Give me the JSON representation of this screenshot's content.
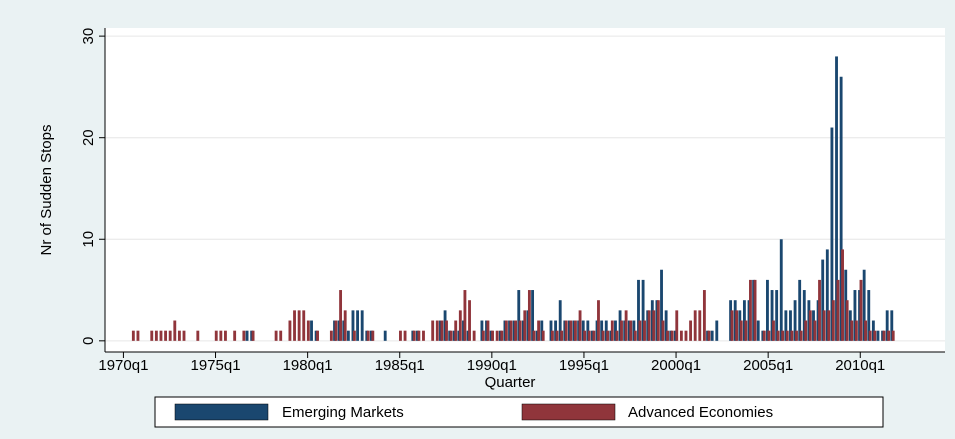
{
  "chart_data": {
    "type": "bar",
    "y_label": "Nr of Sudden Stops",
    "x_label": "Quarter",
    "x": [
      1970.5,
      1970.75,
      1971.5,
      1971.75,
      1972.0,
      1972.25,
      1972.5,
      1972.75,
      1973.0,
      1973.25,
      1974.0,
      1975.0,
      1975.25,
      1975.5,
      1976.0,
      1976.5,
      1976.75,
      1977.0,
      1978.25,
      1978.5,
      1979.0,
      1979.25,
      1979.5,
      1979.75,
      1980.0,
      1980.25,
      1980.5,
      1981.25,
      1981.5,
      1981.75,
      1982.0,
      1982.25,
      1982.5,
      1982.75,
      1983.0,
      1983.25,
      1983.5,
      1984.25,
      1985.0,
      1985.25,
      1985.75,
      1986.0,
      1986.25,
      1986.75,
      1987.0,
      1987.25,
      1987.5,
      1987.75,
      1988.0,
      1988.25,
      1988.5,
      1988.75,
      1989.0,
      1989.5,
      1989.75,
      1990.0,
      1990.25,
      1990.5,
      1990.75,
      1991.0,
      1991.25,
      1991.5,
      1991.75,
      1992.0,
      1992.25,
      1992.5,
      1992.75,
      1993.25,
      1993.5,
      1993.75,
      1994.0,
      1994.25,
      1994.5,
      1994.75,
      1995.0,
      1995.25,
      1995.5,
      1995.75,
      1996.0,
      1996.25,
      1996.5,
      1996.75,
      1997.0,
      1997.25,
      1997.5,
      1997.75,
      1998.0,
      1998.25,
      1998.5,
      1998.75,
      1999.0,
      1999.25,
      1999.5,
      1999.75,
      2000.0,
      2000.25,
      2000.5,
      2000.75,
      2001.0,
      2001.25,
      2001.5,
      2001.75,
      2002.0,
      2002.25,
      2003.0,
      2003.25,
      2003.5,
      2003.75,
      2004.0,
      2004.25,
      2004.5,
      2004.75,
      2005.0,
      2005.25,
      2005.5,
      2005.75,
      2006.0,
      2006.25,
      2006.5,
      2006.75,
      2007.0,
      2007.25,
      2007.5,
      2007.75,
      2008.0,
      2008.25,
      2008.5,
      2008.75,
      2009.0,
      2009.25,
      2009.5,
      2009.75,
      2010.0,
      2010.25,
      2010.5,
      2010.75,
      2011.0,
      2011.25,
      2011.5,
      2011.75
    ],
    "series": [
      {
        "name": "Emerging Markets",
        "color": "#1a476f",
        "values": [
          null,
          null,
          null,
          null,
          null,
          null,
          null,
          null,
          null,
          null,
          null,
          null,
          null,
          null,
          null,
          null,
          1,
          1,
          null,
          null,
          null,
          null,
          null,
          null,
          null,
          2,
          1,
          null,
          2,
          2,
          2,
          1,
          3,
          3,
          3,
          1,
          1,
          1,
          null,
          null,
          1,
          1,
          null,
          null,
          null,
          2,
          3,
          1,
          1,
          1,
          2,
          1,
          null,
          2,
          2,
          1,
          null,
          1,
          2,
          2,
          2,
          5,
          2,
          3,
          5,
          1,
          2,
          2,
          2,
          4,
          2,
          2,
          2,
          2,
          2,
          2,
          1,
          2,
          2,
          2,
          1,
          2,
          3,
          2,
          2,
          2,
          6,
          6,
          3,
          4,
          4,
          7,
          3,
          1,
          1,
          null,
          null,
          null,
          null,
          null,
          null,
          1,
          1,
          2,
          4,
          4,
          3,
          4,
          4,
          6,
          2,
          1,
          6,
          5,
          5,
          10,
          3,
          3,
          4,
          6,
          5,
          4,
          3,
          4,
          8,
          9,
          21,
          28,
          26,
          7,
          3,
          5,
          5,
          7,
          5,
          2,
          1,
          1,
          3,
          3
        ]
      },
      {
        "name": "Advanced Economies",
        "color": "#90353b",
        "values": [
          1,
          1,
          1,
          1,
          1,
          1,
          1,
          2,
          1,
          1,
          1,
          1,
          1,
          1,
          1,
          1,
          null,
          1,
          1,
          1,
          2,
          3,
          3,
          3,
          2,
          null,
          1,
          1,
          2,
          5,
          3,
          null,
          1,
          null,
          null,
          1,
          1,
          null,
          1,
          1,
          1,
          1,
          1,
          2,
          2,
          2,
          2,
          1,
          2,
          3,
          5,
          4,
          1,
          1,
          2,
          1,
          1,
          1,
          2,
          2,
          2,
          2,
          3,
          5,
          1,
          2,
          1,
          1,
          1,
          1,
          2,
          2,
          2,
          3,
          1,
          1,
          1,
          4,
          1,
          1,
          2,
          1,
          2,
          3,
          2,
          1,
          2,
          2,
          3,
          3,
          4,
          2,
          1,
          1,
          3,
          1,
          1,
          2,
          3,
          3,
          5,
          1,
          null,
          null,
          3,
          3,
          2,
          2,
          6,
          6,
          null,
          1,
          1,
          2,
          1,
          1,
          1,
          1,
          1,
          1,
          2,
          3,
          2,
          6,
          3,
          3,
          4,
          6,
          9,
          4,
          2,
          2,
          6,
          2,
          1,
          1,
          null,
          1,
          1,
          1
        ]
      }
    ],
    "xlim": [
      1969,
      2014.6
    ],
    "xticks": [
      {
        "value": 1970,
        "label": "1970q1"
      },
      {
        "value": 1975,
        "label": "1975q1"
      },
      {
        "value": 1980,
        "label": "1980q1"
      },
      {
        "value": 1985,
        "label": "1985q1"
      },
      {
        "value": 1990,
        "label": "1990q1"
      },
      {
        "value": 1995,
        "label": "1995q1"
      },
      {
        "value": 2000,
        "label": "2000q1"
      },
      {
        "value": 2005,
        "label": "2005q1"
      },
      {
        "value": 2010,
        "label": "2010q1"
      }
    ],
    "ylim": [
      -1.1,
      30.8
    ],
    "yticks": [
      0,
      10,
      20,
      30
    ],
    "grid": true,
    "legend": "bottom"
  }
}
